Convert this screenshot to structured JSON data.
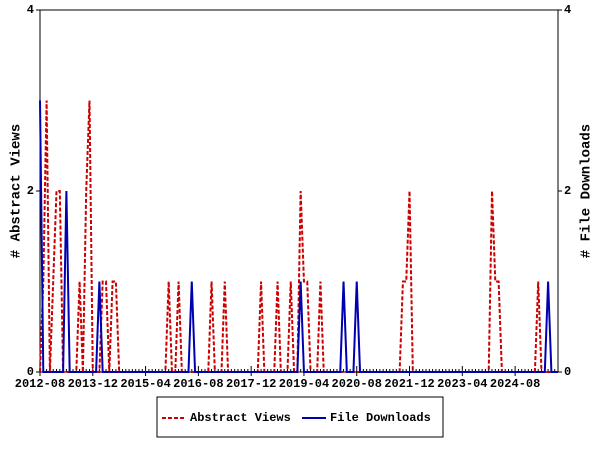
{
  "chart_data": {
    "type": "line",
    "ylabel": "# Abstract Views",
    "y2label": "# File Downloads",
    "categories": [
      "2012-08",
      null,
      null,
      null,
      null,
      null,
      null,
      null,
      null,
      null,
      null,
      null,
      null,
      null,
      null,
      null,
      "2013-12",
      null,
      null,
      null,
      null,
      null,
      null,
      null,
      null,
      null,
      null,
      null,
      null,
      null,
      null,
      null,
      "2015-04",
      null,
      null,
      null,
      null,
      null,
      null,
      null,
      null,
      null,
      null,
      null,
      null,
      null,
      null,
      null,
      "2016-08",
      null,
      null,
      null,
      null,
      null,
      null,
      null,
      null,
      null,
      null,
      null,
      null,
      null,
      null,
      null,
      "2017-12",
      null,
      null,
      null,
      null,
      null,
      null,
      null,
      null,
      null,
      null,
      null,
      null,
      null,
      null,
      null,
      "2019-04",
      null,
      null,
      null,
      null,
      null,
      null,
      null,
      null,
      null,
      null,
      null,
      null,
      null,
      null,
      null,
      "2020-08",
      null,
      null,
      null,
      null,
      null,
      null,
      null,
      null,
      null,
      null,
      null,
      null,
      null,
      null,
      null,
      "2021-12",
      null,
      null,
      null,
      null,
      null,
      null,
      null,
      null,
      null,
      null,
      null,
      null,
      null,
      null,
      null,
      "2023-04",
      null,
      null,
      null,
      null,
      null,
      null,
      null,
      null,
      null,
      null,
      null,
      null,
      null,
      null,
      null,
      "2024-08",
      null,
      null,
      null,
      null,
      null,
      null,
      null,
      null,
      null,
      null,
      null,
      null,
      null
    ],
    "series": [
      {
        "name": "Abstract Views",
        "color": "#cc0000",
        "axis": "y",
        "dashed": true,
        "values": [
          0,
          1,
          3,
          0,
          1,
          2,
          2,
          0,
          0,
          0,
          0,
          0,
          1,
          0,
          2,
          3,
          0,
          0,
          0,
          1,
          1,
          0,
          1,
          1,
          0,
          0,
          0,
          0,
          0,
          0,
          0,
          0,
          0,
          0,
          0,
          0,
          0,
          0,
          0,
          1,
          0,
          0,
          1,
          0,
          0,
          0,
          0,
          0,
          0,
          0,
          0,
          0,
          1,
          0,
          0,
          0,
          1,
          0,
          0,
          0,
          0,
          0,
          0,
          0,
          0,
          0,
          0,
          1,
          0,
          0,
          0,
          0,
          1,
          0,
          0,
          0,
          1,
          0,
          0,
          2,
          1,
          1,
          0,
          0,
          0,
          1,
          0,
          0,
          0,
          0,
          0,
          0,
          0,
          0,
          0,
          0,
          0,
          0,
          0,
          0,
          0,
          0,
          0,
          0,
          0,
          0,
          0,
          0,
          0,
          0,
          1,
          1,
          2,
          0,
          0,
          0,
          0,
          0,
          0,
          0,
          0,
          0,
          0,
          0,
          0,
          0,
          0,
          0,
          0,
          0,
          0,
          0,
          0,
          0,
          0,
          0,
          0,
          2,
          1,
          1,
          0,
          0,
          0,
          0,
          0,
          0,
          0,
          0,
          0,
          0,
          0,
          1,
          0,
          0,
          0,
          0,
          0,
          0
        ]
      },
      {
        "name": "File Downloads",
        "color": "#0000b0",
        "axis": "y2",
        "dashed": false,
        "values": [
          3,
          0,
          0,
          0,
          0,
          0,
          0,
          0,
          2,
          0,
          0,
          0,
          0,
          0,
          0,
          0,
          0,
          0,
          1,
          0,
          0,
          0,
          0,
          0,
          0,
          0,
          0,
          0,
          0,
          0,
          0,
          0,
          0,
          0,
          0,
          0,
          0,
          0,
          0,
          0,
          0,
          0,
          0,
          0,
          0,
          0,
          1,
          0,
          0,
          0,
          0,
          0,
          0,
          0,
          0,
          0,
          0,
          0,
          0,
          0,
          0,
          0,
          0,
          0,
          0,
          0,
          0,
          0,
          0,
          0,
          0,
          0,
          0,
          0,
          0,
          0,
          0,
          0,
          0,
          1,
          0,
          0,
          0,
          0,
          0,
          0,
          0,
          0,
          0,
          0,
          0,
          0,
          1,
          0,
          0,
          0,
          1,
          0,
          0,
          0,
          0,
          0,
          0,
          0,
          0,
          0,
          0,
          0,
          0,
          0,
          0,
          0,
          0,
          0,
          0,
          0,
          0,
          0,
          0,
          0,
          0,
          0,
          0,
          0,
          0,
          0,
          0,
          0,
          0,
          0,
          0,
          0,
          0,
          0,
          0,
          0,
          0,
          0,
          0,
          0,
          0,
          0,
          0,
          0,
          0,
          0,
          0,
          0,
          0,
          0,
          0,
          0,
          0,
          0,
          1,
          0,
          0,
          0
        ]
      }
    ],
    "ylim": [
      0,
      4
    ],
    "yticks": [
      0,
      2,
      4
    ],
    "y2lim": [
      0,
      4
    ],
    "y2ticks": [
      0,
      2,
      4
    ],
    "legend": "bottom"
  }
}
